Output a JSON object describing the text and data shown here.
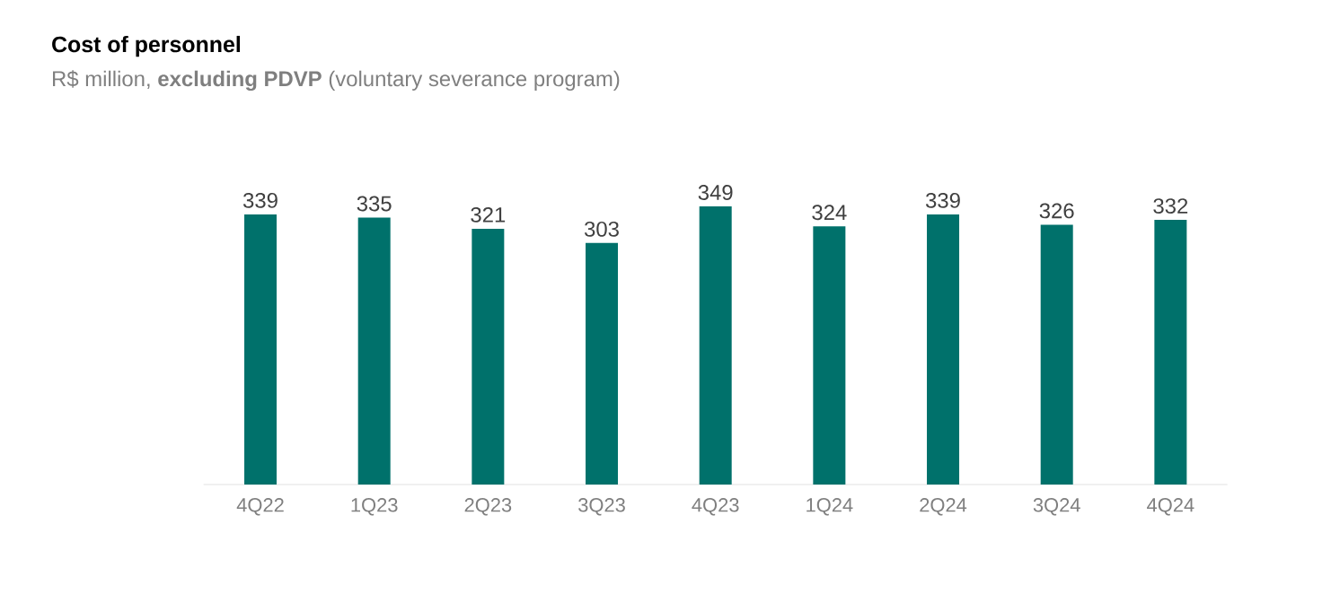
{
  "chart_data": {
    "type": "bar",
    "title": "Cost of personnel",
    "subtitle": "R$ million, **excluding PDVP** (voluntary severance program)",
    "categories": [
      "4Q22",
      "1Q23",
      "2Q23",
      "3Q23",
      "4Q23",
      "1Q24",
      "2Q24",
      "3Q24",
      "4Q24"
    ],
    "values": [
      339,
      335,
      321,
      303,
      349,
      324,
      339,
      326,
      332
    ],
    "color": "#00716b",
    "data_labels": true,
    "tick_labels": "x"
  }
}
